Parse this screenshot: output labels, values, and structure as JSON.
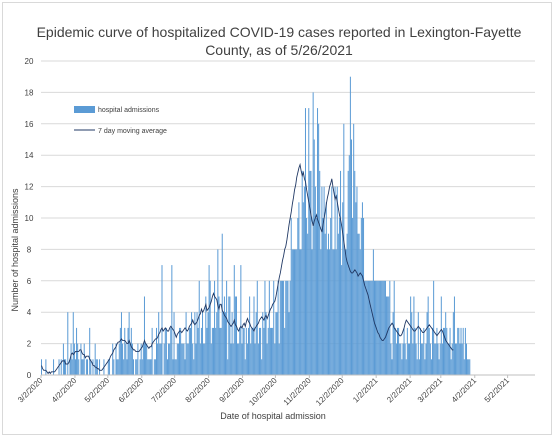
{
  "chart_data": {
    "type": "bar",
    "title_line1": "Epidemic curve of hospitalized COVID-19 cases reported in Lexington-Fayette",
    "title_line2": "County, as of 5/26/2021",
    "xlabel": "Date of hospital admission",
    "ylabel": "Number of hospital admissions",
    "ylim": [
      0,
      20
    ],
    "yticks": [
      "0",
      "2",
      "4",
      "6",
      "8",
      "10",
      "12",
      "14",
      "16",
      "18",
      "20"
    ],
    "x_start_date": "2020-03-02",
    "x_end_date": "2021-05-26",
    "xtick_labels": [
      "3/2/2020",
      "4/2/2020",
      "5/2/2020",
      "6/2/2020",
      "7/2/2020",
      "8/2/2020",
      "9/2/2020",
      "10/2/2020",
      "11/2/2020",
      "12/2/2020",
      "1/2/2021",
      "2/2/2021",
      "3/2/2021",
      "4/2/2021",
      "5/2/2021"
    ],
    "grid": "horizontal",
    "legend_position": "top-left",
    "series": [
      {
        "name": "hospital admissions",
        "kind": "bar",
        "color": "#5b9bd5",
        "values": [
          1,
          0,
          0,
          0,
          1,
          0,
          0,
          0,
          0,
          0,
          0,
          1,
          0,
          0,
          0,
          0,
          1,
          0,
          1,
          0,
          2,
          1,
          1,
          0,
          4,
          0,
          1,
          2,
          1,
          4,
          2,
          1,
          3,
          2,
          1,
          0,
          2,
          1,
          1,
          2,
          0,
          1,
          1,
          0,
          3,
          1,
          0,
          1,
          0,
          2,
          1,
          1,
          0,
          1,
          0,
          0,
          0,
          1,
          0,
          0,
          0,
          1,
          1,
          0,
          0,
          2,
          1,
          0,
          2,
          1,
          1,
          2,
          3,
          4,
          2,
          1,
          3,
          2,
          1,
          3,
          4,
          2,
          3,
          2,
          1,
          0,
          1,
          1,
          2,
          0,
          1,
          2,
          1,
          2,
          5,
          2,
          2,
          1,
          1,
          1,
          1,
          3,
          0,
          1,
          1,
          3,
          2,
          4,
          2,
          2,
          7,
          0,
          2,
          3,
          3,
          1,
          2,
          2,
          3,
          7,
          1,
          4,
          1,
          1,
          2,
          2,
          3,
          3,
          2,
          2,
          2,
          1,
          4,
          2,
          2,
          3,
          3,
          4,
          2,
          1,
          4,
          2,
          4,
          3,
          6,
          2,
          3,
          4,
          2,
          2,
          5,
          3,
          4,
          7,
          6,
          2,
          3,
          3,
          6,
          3,
          4,
          8,
          5,
          3,
          3,
          9,
          4,
          5,
          4,
          6,
          1,
          5,
          5,
          2,
          4,
          2,
          7,
          5,
          5,
          2,
          2,
          3,
          7,
          2,
          3,
          3,
          1,
          3,
          2,
          3,
          5,
          2,
          3,
          3,
          5,
          2,
          4,
          6,
          2,
          3,
          3,
          1,
          4,
          3,
          6,
          4,
          2,
          3,
          6,
          3,
          3,
          3,
          6,
          2,
          4,
          4,
          6,
          2,
          6,
          6,
          6,
          6,
          3,
          6,
          6,
          6,
          4,
          6,
          10,
          8,
          8,
          8,
          8,
          8,
          10,
          11,
          8,
          8,
          13,
          11,
          12,
          17,
          10,
          9,
          17,
          13,
          13,
          8,
          18,
          15,
          12,
          10,
          17,
          16,
          13,
          8,
          12,
          10,
          12,
          9,
          11,
          8,
          9,
          8,
          10,
          12,
          8,
          8,
          12,
          8,
          12,
          9,
          10,
          13,
          7,
          11,
          16,
          8,
          8,
          9,
          13,
          14,
          19,
          15,
          10,
          16,
          13,
          11,
          12,
          9,
          9,
          8,
          10,
          11,
          10,
          6,
          6,
          6,
          6,
          6,
          6,
          6,
          6,
          8,
          6,
          6,
          6,
          6,
          6,
          6,
          6,
          6,
          6,
          6,
          6,
          5,
          5,
          5,
          6,
          2,
          1,
          4,
          6,
          3,
          2,
          3,
          3,
          2,
          2,
          1,
          2,
          3,
          2,
          1,
          3,
          2,
          2,
          5,
          4,
          2,
          5,
          3,
          2,
          1,
          4,
          1,
          3,
          2,
          2,
          3,
          1,
          2,
          4,
          5,
          3,
          2,
          1,
          3,
          6,
          2,
          2,
          3,
          2,
          1,
          2,
          5,
          2,
          3,
          3,
          4,
          3,
          2,
          2,
          3,
          1,
          2,
          4,
          5,
          2,
          2,
          3,
          3,
          2,
          3,
          2,
          3,
          1,
          3,
          2,
          1,
          1,
          1
        ]
      },
      {
        "name": "7 day moving average",
        "kind": "line",
        "color": "#203864",
        "values": [
          0.6,
          0.4,
          0.3,
          0.3,
          0.3,
          0.2,
          0.1,
          0.2,
          0.1,
          0.2,
          0.2,
          0.2,
          0.2,
          0.3,
          0.4,
          0.5,
          0.6,
          0.7,
          0.8,
          0.9,
          0.9,
          0.9,
          0.7,
          0.7,
          0.7,
          0.8,
          1.0,
          1.3,
          1.4,
          1.3,
          1.4,
          1.5,
          1.5,
          1.5,
          1.5,
          1.6,
          1.6,
          1.4,
          1.3,
          1.3,
          1.1,
          1.2,
          1.2,
          1.2,
          1.0,
          0.9,
          0.8,
          0.6,
          0.6,
          0.5,
          0.5,
          0.4,
          0.4,
          0.3,
          0.3,
          0.3,
          0.4,
          0.5,
          0.6,
          0.7,
          0.8,
          0.9,
          1.0,
          1.2,
          1.3,
          1.4,
          1.6,
          1.7,
          1.8,
          2.0,
          2.1,
          2.1,
          2.2,
          2.3,
          2.2,
          2.2,
          2.2,
          2.1,
          2.0,
          2.0,
          2.2,
          2.0,
          1.8,
          1.7,
          1.6,
          1.6,
          1.5,
          1.5,
          1.5,
          1.5,
          1.6,
          1.7,
          1.8,
          2.0,
          2.2,
          2.0,
          1.9,
          1.8,
          1.7,
          1.8,
          1.8,
          2.0,
          2.1,
          2.2,
          2.3,
          2.3,
          2.4,
          2.6,
          2.7,
          2.9,
          3.0,
          2.8,
          2.9,
          3.0,
          2.9,
          2.8,
          2.8,
          3.0,
          3.1,
          3.0,
          2.9,
          2.8,
          2.6,
          2.4,
          2.6,
          2.7,
          2.8,
          2.8,
          2.7,
          2.8,
          2.9,
          3.0,
          2.9,
          2.8,
          2.9,
          3.1,
          3.2,
          3.3,
          3.5,
          3.3,
          3.2,
          3.3,
          3.4,
          3.6,
          3.8,
          3.9,
          4.2,
          4.0,
          4.1,
          4.3,
          4.5,
          4.1,
          4.2,
          4.3,
          4.5,
          4.7,
          5.0,
          5.2,
          5.0,
          4.9,
          4.8,
          4.4,
          4.2,
          4.5,
          4.5,
          4.1,
          4.0,
          3.8,
          3.7,
          3.6,
          3.4,
          3.3,
          3.2,
          3.1,
          3.2,
          3.3,
          3.5,
          3.2,
          3.1,
          2.9,
          2.8,
          3.0,
          3.1,
          3.0,
          3.2,
          3.3,
          3.1,
          3.4,
          3.6,
          3.4,
          3.3,
          3.1,
          3.0,
          2.9,
          2.8,
          3.0,
          3.1,
          3.2,
          3.3,
          3.5,
          3.6,
          3.7,
          3.6,
          3.5,
          3.7,
          3.8,
          3.6,
          3.8,
          4.0,
          4.2,
          4.3,
          4.5,
          4.6,
          4.7,
          5.0,
          5.4,
          5.8,
          6.2,
          6.5,
          6.9,
          7.3,
          7.6,
          8.0,
          8.2,
          8.6,
          9.1,
          9.6,
          10.0,
          10.4,
          10.9,
          11.3,
          11.8,
          12.1,
          12.6,
          12.9,
          13.2,
          13.4,
          13.0,
          12.7,
          12.9,
          12.5,
          12.3,
          11.8,
          11.4,
          11.0,
          10.6,
          10.2,
          9.8,
          9.5,
          9.8,
          10.0,
          10.2,
          9.9,
          9.7,
          9.5,
          9.3,
          9.1,
          9.6,
          10.0,
          10.4,
          10.9,
          11.3,
          11.6,
          12.0,
          12.2,
          12.5,
          12.0,
          11.6,
          11.2,
          11.4,
          11.0,
          10.6,
          10.2,
          9.9,
          9.5,
          9.0,
          8.5,
          8.0,
          7.5,
          7.2,
          7.0,
          6.8,
          6.6,
          6.5,
          6.5,
          6.6,
          6.7,
          6.6,
          6.5,
          6.3,
          6.4,
          6.5,
          6.4,
          6.3,
          6.0,
          5.7,
          5.5,
          5.3,
          5.1,
          4.8,
          4.5,
          4.2,
          3.9,
          3.6,
          3.3,
          3.1,
          2.9,
          2.7,
          2.6,
          2.4,
          2.3,
          2.2,
          2.2,
          2.3,
          2.4,
          2.6,
          2.8,
          3.0,
          3.1,
          3.2,
          3.3,
          3.2,
          3.0,
          2.9,
          2.8,
          2.7,
          2.6,
          2.5,
          2.5,
          2.6,
          2.8,
          3.0,
          3.3,
          3.5,
          3.4,
          3.3,
          3.2,
          3.1,
          3.0,
          2.9,
          2.8,
          2.8,
          2.9,
          3.0,
          3.1,
          3.0,
          2.9,
          2.8,
          2.7,
          2.7,
          2.8,
          2.9,
          3.0,
          3.1,
          3.2,
          3.1,
          3.0,
          2.9,
          2.8,
          2.7,
          2.6,
          2.5,
          2.6,
          2.7,
          2.8,
          2.9,
          2.8,
          2.6,
          2.4,
          2.2,
          2.1,
          2.0,
          1.9,
          1.8,
          1.7,
          1.6,
          1.6
        ]
      }
    ]
  }
}
